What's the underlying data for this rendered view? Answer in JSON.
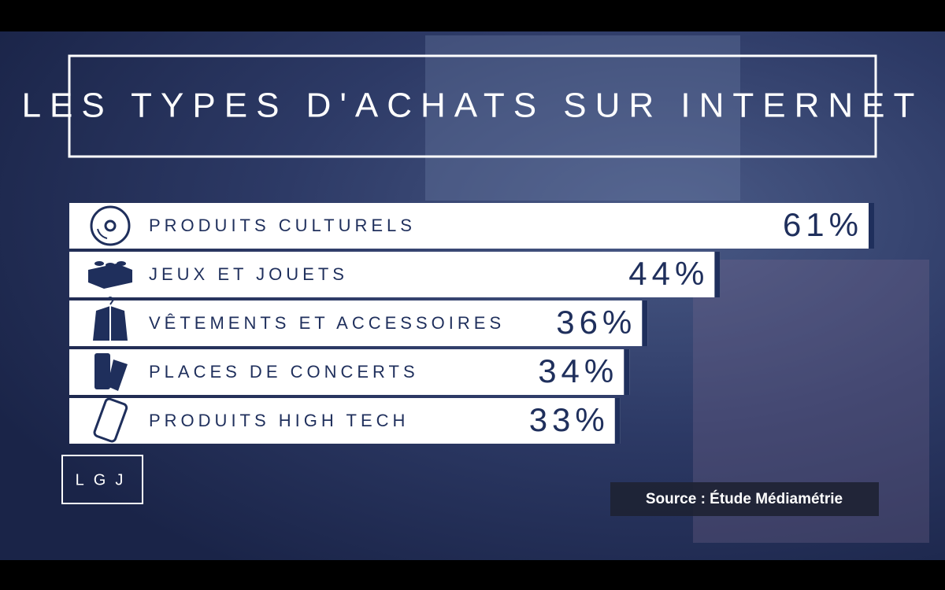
{
  "chart_data": {
    "type": "bar",
    "orientation": "horizontal",
    "title": "LES TYPES D'ACHATS SUR INTERNET",
    "categories": [
      "PRODUITS CULTURELS",
      "JEUX ET JOUETS",
      "VÊTEMENTS ET ACCESSOIRES",
      "PLACES DE CONCERTS",
      "PRODUITS HIGH TECH"
    ],
    "values": [
      61,
      44,
      36,
      34,
      33
    ],
    "value_labels": [
      "61%",
      "44%",
      "36%",
      "34%",
      "33%"
    ],
    "color": "#ffffff",
    "label_color": "#1f2f5c",
    "source": "Source : Étude Médiamétrie",
    "logo": "LGJ"
  }
}
